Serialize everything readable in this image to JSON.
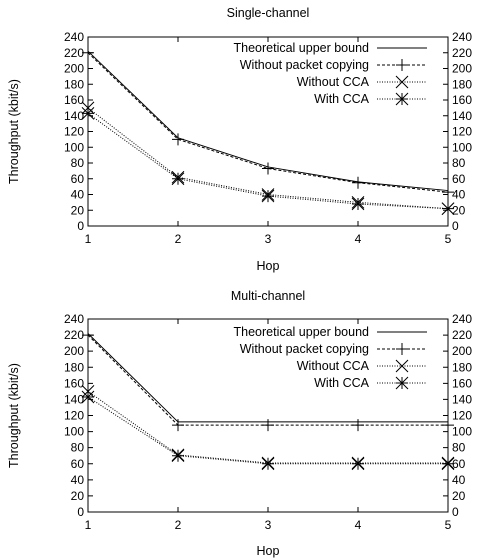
{
  "chart_data": [
    {
      "type": "line",
      "title": "Single-channel",
      "xlabel": "Hop",
      "ylabel": "Throughput (kbit/s)",
      "x": [
        1,
        2,
        3,
        4,
        5
      ],
      "xlim": [
        1,
        5
      ],
      "ylim": [
        0,
        240
      ],
      "x_ticks": [
        "1",
        "2",
        "3",
        "4",
        "5"
      ],
      "y_ticks": [
        "0",
        "20",
        "40",
        "60",
        "80",
        "100",
        "120",
        "140",
        "160",
        "180",
        "200",
        "220",
        "240"
      ],
      "right_y_axis": true,
      "grid": false,
      "legend_position": "top-right",
      "series": [
        {
          "name": "Theoretical upper bound",
          "values": [
            222,
            112,
            75,
            56,
            45
          ],
          "line": "solid",
          "marker": "none"
        },
        {
          "name": "Without packet copying",
          "values": [
            220,
            110,
            73,
            55,
            43
          ],
          "line": "dashed",
          "marker": "plus"
        },
        {
          "name": "Without CCA",
          "values": [
            150,
            62,
            40,
            30,
            22
          ],
          "line": "dotted",
          "marker": "x"
        },
        {
          "name": "With CCA",
          "values": [
            143,
            60,
            38,
            28,
            22
          ],
          "line": "dotted",
          "marker": "star"
        }
      ]
    },
    {
      "type": "line",
      "title": "Multi-channel",
      "xlabel": "Hop",
      "ylabel": "Throughput (kbit/s)",
      "x": [
        1,
        2,
        3,
        4,
        5
      ],
      "xlim": [
        1,
        5
      ],
      "ylim": [
        0,
        240
      ],
      "x_ticks": [
        "1",
        "2",
        "3",
        "4",
        "5"
      ],
      "y_ticks": [
        "0",
        "20",
        "40",
        "60",
        "80",
        "100",
        "120",
        "140",
        "160",
        "180",
        "200",
        "220",
        "240"
      ],
      "right_y_axis": true,
      "grid": false,
      "legend_position": "top-right",
      "series": [
        {
          "name": "Theoretical upper bound",
          "values": [
            222,
            112,
            112,
            112,
            112
          ],
          "line": "solid",
          "marker": "none"
        },
        {
          "name": "Without packet copying",
          "values": [
            220,
            108,
            108,
            108,
            108
          ],
          "line": "dashed",
          "marker": "plus"
        },
        {
          "name": "Without CCA",
          "values": [
            150,
            71,
            61,
            61,
            61
          ],
          "line": "dotted",
          "marker": "x"
        },
        {
          "name": "With CCA",
          "values": [
            143,
            70,
            60,
            60,
            60
          ],
          "line": "dotted",
          "marker": "star"
        }
      ]
    }
  ]
}
